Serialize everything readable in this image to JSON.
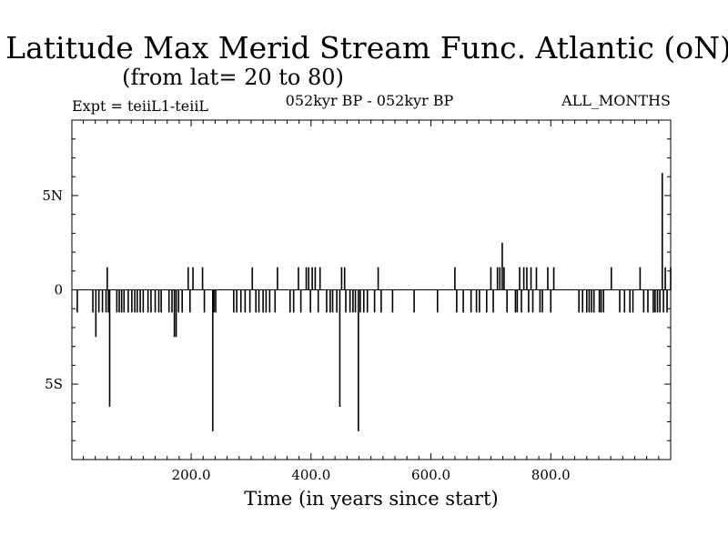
{
  "chart_data": {
    "type": "line",
    "title": "Latitude Max Merid Stream Func. Atlantic (oN)",
    "subtitle": "(from lat= 20 to 80)",
    "expt_label": "Expt = teiiL1-teiiL",
    "period_label": "052kyr BP - 052kyr BP",
    "months_label": "ALL_MONTHS",
    "xlabel": "Time (in years since start)",
    "ylabel": "",
    "xlim": [
      1,
      1000
    ],
    "ylim": [
      -9,
      9
    ],
    "x_ticks": [
      200,
      400,
      600,
      800
    ],
    "x_tick_labels": [
      "200.0",
      "400.0",
      "600.0",
      "800.0"
    ],
    "y_ticks": [
      5,
      0,
      -5
    ],
    "y_tick_labels": [
      "5N",
      "0",
      "5S"
    ],
    "grid": false,
    "baseline": 0,
    "series": [
      {
        "x": [
          10,
          36,
          41,
          46,
          52,
          58,
          60,
          62,
          64,
          76,
          80,
          84,
          88,
          95,
          101,
          106,
          110,
          115,
          120,
          128,
          133,
          140,
          146,
          150,
          163,
          168,
          172,
          175,
          179,
          185,
          195,
          198,
          203,
          219,
          222,
          236,
          238,
          241,
          271,
          276,
          283,
          290,
          298,
          302,
          308,
          313,
          320,
          325,
          331,
          340,
          344,
          365,
          371,
          379,
          383,
          392,
          396,
          399,
          402,
          407,
          412,
          415,
          426,
          432,
          436,
          443,
          448,
          451,
          456,
          458,
          465,
          470,
          474,
          479,
          482,
          488,
          494,
          506,
          512,
          517,
          536,
          572,
          611,
          640,
          643,
          654,
          667,
          676,
          681,
          693,
          700,
          704,
          711,
          715,
          719,
          722,
          727,
          741,
          744,
          748,
          751,
          755,
          760,
          763,
          767,
          770,
          776,
          782,
          786,
          795,
          800,
          805,
          847,
          853,
          860,
          864,
          868,
          872,
          881,
          884,
          888,
          901,
          915,
          923,
          932,
          937,
          949,
          955,
          962,
          971,
          974,
          978,
          982,
          986,
          988,
          991,
          994,
          1000
        ],
        "values": [
          -1.2,
          -1.2,
          -2.5,
          -1.2,
          -1.2,
          -1.2,
          1.2,
          -1.2,
          -6.2,
          -1.2,
          -1.2,
          -1.2,
          -1.2,
          -1.2,
          -1.2,
          -1.2,
          -1.2,
          -1.2,
          -1.2,
          -1.2,
          -1.2,
          -1.2,
          -1.2,
          -1.2,
          -1.2,
          -1.2,
          -2.5,
          -2.5,
          -1.2,
          -1.2,
          1.2,
          -1.2,
          1.2,
          1.2,
          -1.2,
          -7.5,
          -1.2,
          -1.2,
          -1.2,
          -1.2,
          -1.2,
          -1.2,
          -1.2,
          1.2,
          -1.2,
          -1.2,
          -1.2,
          -1.2,
          -1.2,
          -1.2,
          1.2,
          -1.2,
          -1.2,
          1.2,
          -1.2,
          1.2,
          1.2,
          -1.2,
          1.2,
          1.2,
          -1.2,
          1.2,
          -1.2,
          -1.2,
          -1.2,
          -1.2,
          -6.2,
          1.2,
          1.2,
          -1.2,
          -1.2,
          -1.2,
          -1.2,
          -7.5,
          -1.2,
          -1.2,
          -1.2,
          -1.2,
          1.2,
          -1.2,
          -1.2,
          -1.2,
          -1.2,
          1.2,
          -1.2,
          -1.2,
          -1.2,
          -1.2,
          -1.2,
          -1.2,
          1.2,
          -1.2,
          1.2,
          1.2,
          2.5,
          1.2,
          -1.2,
          -1.2,
          -1.2,
          1.2,
          -1.2,
          1.2,
          1.2,
          -1.2,
          1.2,
          -1.2,
          1.2,
          -1.2,
          -1.2,
          1.2,
          -1.2,
          1.2,
          -1.2,
          -1.2,
          -1.2,
          -1.2,
          -1.2,
          -1.2,
          -1.2,
          -1.2,
          -1.2,
          1.2,
          -1.2,
          -1.2,
          -1.2,
          -1.2,
          1.2,
          -1.2,
          -1.2,
          -1.2,
          -1.2,
          -1.2,
          -1.2,
          6.2,
          -1.2,
          1.2,
          -1.2,
          1.2
        ]
      }
    ]
  }
}
